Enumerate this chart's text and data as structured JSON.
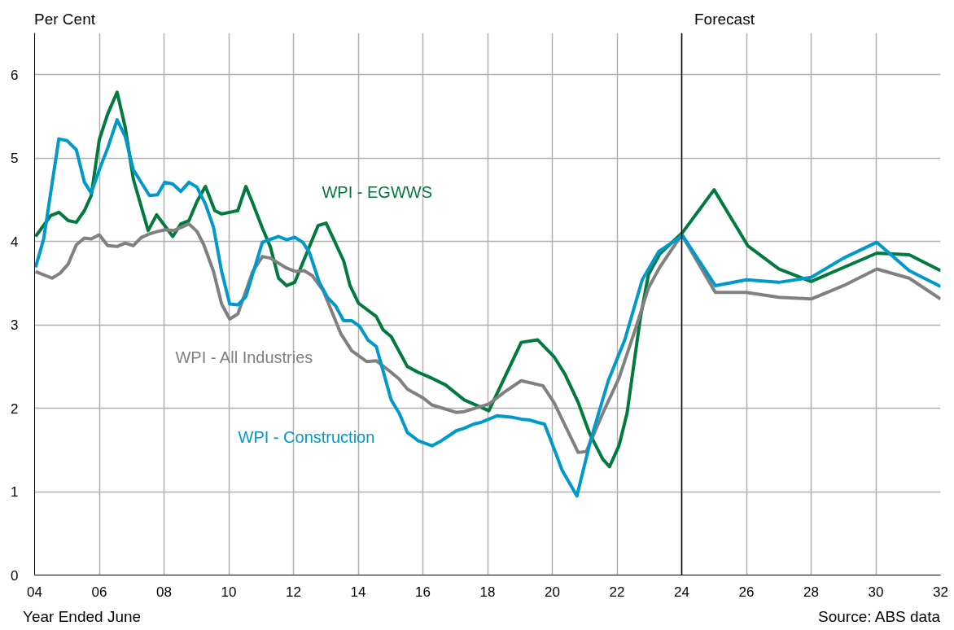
{
  "chart_data": {
    "type": "line",
    "ylabel": "Per Cent",
    "xlabel": "Year Ended June",
    "xlim": [
      2004,
      2032
    ],
    "ylim": [
      0,
      6.5
    ],
    "xticks": [
      {
        "value": 2004,
        "label": "04"
      },
      {
        "value": 2006,
        "label": "06"
      },
      {
        "value": 2008,
        "label": "08"
      },
      {
        "value": 2010,
        "label": "10"
      },
      {
        "value": 2012,
        "label": "12"
      },
      {
        "value": 2014,
        "label": "14"
      },
      {
        "value": 2016,
        "label": "16"
      },
      {
        "value": 2018,
        "label": "18"
      },
      {
        "value": 2020,
        "label": "20"
      },
      {
        "value": 2022,
        "label": "22"
      },
      {
        "value": 2024,
        "label": "24"
      },
      {
        "value": 2026,
        "label": "26"
      },
      {
        "value": 2028,
        "label": "28"
      },
      {
        "value": 2030,
        "label": "30"
      },
      {
        "value": 2032,
        "label": "32"
      }
    ],
    "yticks": [
      0,
      1,
      2,
      3,
      4,
      5,
      6
    ],
    "grid": true,
    "legend": false,
    "marker": "none",
    "line_style": "solid",
    "ref_lines": [
      {
        "axis": "x",
        "value": 2024,
        "label": "Forecast",
        "color": "#000000"
      }
    ],
    "annotations": [
      "Source: ABS data"
    ],
    "series": [
      {
        "name": "WPI - EGWWS",
        "color": "#007a3d",
        "x": [
          2004.03,
          2004.5,
          2004.75,
          2005.04,
          2005.29,
          2005.54,
          2005.75,
          2006.0,
          2006.26,
          2006.55,
          2006.8,
          2007.05,
          2007.51,
          2007.77,
          2008.27,
          2008.52,
          2008.77,
          2009.02,
          2009.28,
          2009.57,
          2009.78,
          2010.28,
          2010.53,
          2010.78,
          2011.04,
          2011.29,
          2011.54,
          2011.79,
          2012.04,
          2012.76,
          2013.01,
          2013.55,
          2013.75,
          2014.01,
          2014.56,
          2014.77,
          2015.02,
          2015.52,
          2015.86,
          2016.28,
          2016.7,
          2017.28,
          2018.04,
          2019.04,
          2019.55,
          2020.05,
          2020.39,
          2020.8,
          2021.14,
          2021.56,
          2021.77,
          2022.06,
          2022.31,
          2022.72,
          2022.97,
          2023.32,
          2024.03,
          2025.0,
          2026.04,
          2027.0,
          2028.0,
          2030.03,
          2031.03,
          2032.0
        ],
        "values": [
          4.06,
          4.31,
          4.35,
          4.25,
          4.23,
          4.37,
          4.55,
          5.22,
          5.53,
          5.79,
          5.37,
          4.75,
          4.13,
          4.32,
          4.06,
          4.21,
          4.25,
          4.48,
          4.66,
          4.37,
          4.33,
          4.37,
          4.66,
          4.42,
          4.16,
          3.93,
          3.56,
          3.47,
          3.51,
          4.19,
          4.22,
          3.77,
          3.47,
          3.26,
          3.1,
          2.94,
          2.86,
          2.5,
          2.43,
          2.36,
          2.28,
          2.1,
          1.97,
          2.79,
          2.82,
          2.62,
          2.41,
          2.07,
          1.71,
          1.39,
          1.3,
          1.55,
          1.94,
          3.08,
          3.6,
          3.85,
          4.11,
          4.62,
          3.95,
          3.67,
          3.52,
          3.86,
          3.84,
          3.65
        ]
      },
      {
        "name": "WPI - All Industries",
        "color": "#808080",
        "x": [
          2004.03,
          2004.54,
          2004.79,
          2005.04,
          2005.29,
          2005.54,
          2005.75,
          2006.0,
          2006.26,
          2006.55,
          2006.8,
          2007.05,
          2007.3,
          2007.55,
          2007.8,
          2008.05,
          2008.3,
          2008.77,
          2009.02,
          2009.23,
          2009.53,
          2009.78,
          2010.03,
          2010.28,
          2010.74,
          2011.04,
          2011.29,
          2011.79,
          2012.08,
          2012.33,
          2012.58,
          2012.92,
          2013.47,
          2013.8,
          2014.26,
          2014.56,
          2015.02,
          2015.27,
          2015.52,
          2016.02,
          2016.28,
          2017.03,
          2017.28,
          2018.04,
          2018.54,
          2019.04,
          2019.71,
          2020.05,
          2020.8,
          2021.05,
          2021.56,
          2022.06,
          2022.57,
          2022.97,
          2023.32,
          2024.0,
          2025.04,
          2026.0,
          2027.0,
          2028.0,
          2029.0,
          2030.03,
          2031.03,
          2032.0
        ],
        "values": [
          3.64,
          3.56,
          3.62,
          3.73,
          3.96,
          4.04,
          4.03,
          4.08,
          3.95,
          3.94,
          3.98,
          3.95,
          4.05,
          4.09,
          4.12,
          4.14,
          4.13,
          4.21,
          4.12,
          3.96,
          3.64,
          3.25,
          3.07,
          3.13,
          3.64,
          3.82,
          3.8,
          3.68,
          3.64,
          3.65,
          3.59,
          3.41,
          2.89,
          2.69,
          2.56,
          2.57,
          2.43,
          2.35,
          2.23,
          2.12,
          2.04,
          1.95,
          1.96,
          2.05,
          2.2,
          2.33,
          2.27,
          2.07,
          1.47,
          1.48,
          1.94,
          2.36,
          2.95,
          3.44,
          3.69,
          4.08,
          3.39,
          3.39,
          3.33,
          3.31,
          3.47,
          3.67,
          3.56,
          3.31
        ]
      },
      {
        "name": "WPI - Construction",
        "color": "#0099cc",
        "x": [
          2004.03,
          2004.28,
          2004.75,
          2005.0,
          2005.29,
          2005.54,
          2005.75,
          2006.0,
          2006.26,
          2006.55,
          2006.8,
          2007.05,
          2007.55,
          2007.8,
          2008.02,
          2008.27,
          2008.52,
          2008.77,
          2009.02,
          2009.28,
          2009.53,
          2009.78,
          2010.03,
          2010.28,
          2010.53,
          2011.04,
          2011.54,
          2011.79,
          2012.04,
          2012.29,
          2012.5,
          2012.8,
          2013.05,
          2013.3,
          2013.55,
          2013.8,
          2014.05,
          2014.3,
          2014.56,
          2015.02,
          2015.27,
          2015.52,
          2015.86,
          2016.28,
          2016.53,
          2017.03,
          2017.28,
          2017.57,
          2017.79,
          2018.29,
          2018.79,
          2019.04,
          2019.29,
          2019.55,
          2019.76,
          2020.05,
          2020.3,
          2020.76,
          2021.18,
          2021.73,
          2022.24,
          2022.78,
          2023.29,
          2024.03,
          2025.04,
          2026.0,
          2027.0,
          2028.0,
          2029.0,
          2030.03,
          2031.03,
          2032.0
        ],
        "values": [
          3.69,
          4.03,
          5.23,
          5.21,
          5.1,
          4.71,
          4.58,
          4.86,
          5.12,
          5.46,
          5.26,
          4.86,
          4.55,
          4.56,
          4.71,
          4.69,
          4.6,
          4.71,
          4.65,
          4.45,
          4.17,
          3.64,
          3.25,
          3.24,
          3.34,
          3.99,
          4.06,
          4.02,
          4.05,
          3.99,
          3.86,
          3.51,
          3.33,
          3.23,
          3.05,
          3.05,
          2.98,
          2.82,
          2.74,
          2.1,
          1.94,
          1.71,
          1.61,
          1.55,
          1.6,
          1.73,
          1.76,
          1.81,
          1.83,
          1.91,
          1.89,
          1.87,
          1.86,
          1.83,
          1.81,
          1.52,
          1.26,
          0.95,
          1.61,
          2.33,
          2.82,
          3.54,
          3.88,
          4.07,
          3.47,
          3.54,
          3.51,
          3.57,
          3.8,
          3.99,
          3.65,
          3.46
        ]
      }
    ]
  }
}
